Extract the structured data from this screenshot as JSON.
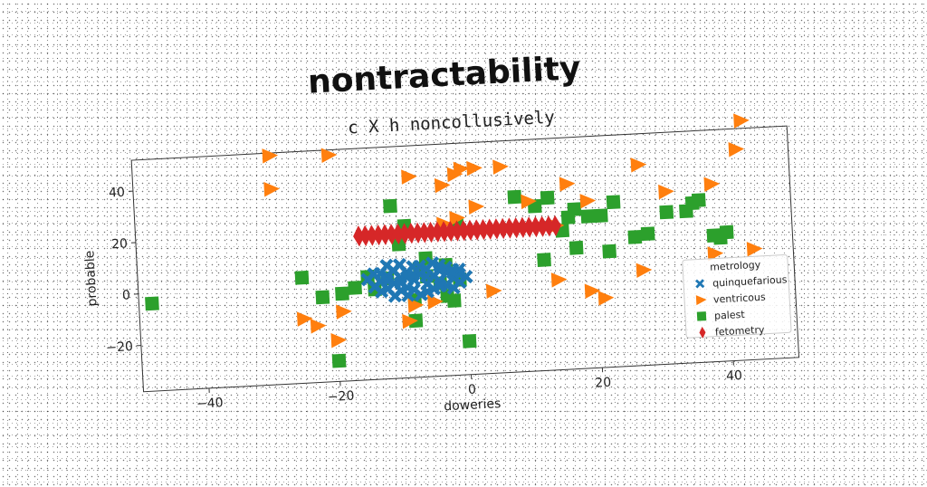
{
  "chart_data": {
    "type": "scatter",
    "title": "nontractability",
    "subtitle": "c X h noncollusively",
    "xlabel": "doweries",
    "ylabel": "probable",
    "xlim": [
      -50,
      50
    ],
    "ylim": [
      -38,
      52
    ],
    "xticks": [
      -40,
      -20,
      0,
      20,
      40
    ],
    "yticks": [
      -20,
      0,
      20,
      40
    ],
    "grid": false,
    "legend": {
      "title": "metrology",
      "placement": "lower-right"
    },
    "series": [
      {
        "name": "quinquefarious",
        "marker": "X",
        "color": "#1f77b4",
        "points": [
          [
            -14,
            -2
          ],
          [
            -13,
            0
          ],
          [
            -12,
            2
          ],
          [
            -11,
            -1
          ],
          [
            -10,
            1
          ],
          [
            -9,
            -3
          ],
          [
            -8,
            0
          ],
          [
            -7,
            2
          ],
          [
            -6,
            -2
          ],
          [
            -5,
            1
          ],
          [
            -4,
            -1
          ],
          [
            -3,
            2
          ],
          [
            -2,
            0
          ],
          [
            -1,
            -2
          ],
          [
            -13,
            3
          ],
          [
            -12,
            -3
          ],
          [
            -11,
            4
          ],
          [
            -10,
            -4
          ],
          [
            -9,
            3
          ],
          [
            -8,
            -4
          ],
          [
            -7,
            5
          ],
          [
            -6,
            4
          ],
          [
            -5,
            -4
          ],
          [
            -4,
            3
          ],
          [
            -3,
            -3
          ],
          [
            -2,
            3
          ],
          [
            -1,
            1
          ],
          [
            0,
            0
          ],
          [
            -15,
            1
          ],
          [
            -14,
            3
          ],
          [
            -12,
            6
          ],
          [
            -10,
            6
          ],
          [
            -8,
            5
          ],
          [
            -6,
            -5
          ],
          [
            -4,
            5
          ],
          [
            -2,
            -4
          ],
          [
            -11,
            -6
          ],
          [
            -9,
            -6
          ],
          [
            -7,
            -6
          ],
          [
            -5,
            6
          ],
          [
            -3,
            4
          ],
          [
            -1,
            3
          ],
          [
            -13,
            -4
          ],
          [
            -8,
            2
          ],
          [
            -6,
            1
          ],
          [
            -10,
            -1
          ],
          [
            -12,
            0
          ],
          [
            -4,
            -3
          ],
          [
            -2,
            2
          ],
          [
            -9,
            1
          ]
        ]
      },
      {
        "name": "ventricous",
        "marker": "triangle-right",
        "color": "#ff7f0e",
        "points": [
          [
            -29,
            51
          ],
          [
            -20,
            50
          ],
          [
            -29,
            38
          ],
          [
            -8,
            40
          ],
          [
            -3,
            36
          ],
          [
            -1,
            40
          ],
          [
            0,
            42
          ],
          [
            2,
            42
          ],
          [
            6,
            42
          ],
          [
            16,
            34
          ],
          [
            27,
            40
          ],
          [
            31,
            29
          ],
          [
            38,
            31
          ],
          [
            42,
            44
          ],
          [
            43,
            55
          ],
          [
            -19,
            -11
          ],
          [
            -23,
            -16
          ],
          [
            -25,
            -13
          ],
          [
            -20,
            -22
          ],
          [
            -9,
            -16
          ],
          [
            -5,
            -9
          ],
          [
            -1,
            23
          ],
          [
            -3,
            21
          ],
          [
            2,
            27
          ],
          [
            10,
            28
          ],
          [
            19,
            27
          ],
          [
            4,
            -6
          ],
          [
            14,
            -3
          ],
          [
            19,
            -8
          ],
          [
            21,
            -11
          ],
          [
            27,
            -1
          ],
          [
            38,
            4
          ],
          [
            44,
            5
          ],
          [
            14,
            18
          ],
          [
            -8,
            -10
          ]
        ]
      },
      {
        "name": "palest",
        "marker": "square",
        "color": "#2ca02c",
        "points": [
          [
            -48,
            -4
          ],
          [
            -25,
            3
          ],
          [
            -22,
            -5
          ],
          [
            -19,
            -4
          ],
          [
            -17,
            -2
          ],
          [
            -14,
            -3
          ],
          [
            -15,
            2
          ],
          [
            -10,
            14
          ],
          [
            -11,
            29
          ],
          [
            -9,
            21
          ],
          [
            -8,
            -8
          ],
          [
            -6,
            1
          ],
          [
            -6,
            8
          ],
          [
            -3,
            -7
          ],
          [
            -2,
            -9
          ],
          [
            -1,
            -1
          ],
          [
            -1,
            20
          ],
          [
            0,
            -25
          ],
          [
            8,
            30
          ],
          [
            11,
            26
          ],
          [
            13,
            29
          ],
          [
            12,
            5
          ],
          [
            16,
            21
          ],
          [
            17,
            24
          ],
          [
            19,
            21
          ],
          [
            21,
            21
          ],
          [
            23,
            26
          ],
          [
            26,
            12
          ],
          [
            28,
            13
          ],
          [
            31,
            21
          ],
          [
            34,
            21
          ],
          [
            35,
            24
          ],
          [
            36,
            25
          ],
          [
            38,
            11
          ],
          [
            39,
            10
          ],
          [
            40,
            12
          ],
          [
            -20,
            -30
          ],
          [
            -8,
            -16
          ],
          [
            -12,
            1
          ],
          [
            -7,
            4
          ],
          [
            -4,
            -2
          ],
          [
            -3,
            5
          ],
          [
            15,
            16
          ],
          [
            17,
            9
          ],
          [
            22,
            7
          ]
        ]
      },
      {
        "name": "fetometry",
        "marker": "thin-diamond",
        "color": "#d62728",
        "points": [
          [
            -16,
            18
          ],
          [
            -15,
            18
          ],
          [
            -14,
            18
          ],
          [
            -13,
            18
          ],
          [
            -12,
            18
          ],
          [
            -11,
            18
          ],
          [
            -10,
            18
          ],
          [
            -9,
            18
          ],
          [
            -8,
            18
          ],
          [
            -7,
            18
          ],
          [
            -6,
            18
          ],
          [
            -5,
            18
          ],
          [
            -4,
            18
          ],
          [
            -3,
            18
          ],
          [
            -2,
            18
          ],
          [
            -1,
            18
          ],
          [
            0,
            18
          ],
          [
            1,
            18
          ],
          [
            2,
            18
          ],
          [
            3,
            18
          ],
          [
            4,
            18
          ],
          [
            5,
            18
          ],
          [
            6,
            18
          ],
          [
            7,
            18
          ],
          [
            8,
            18
          ],
          [
            9,
            18
          ],
          [
            10,
            18
          ],
          [
            11,
            18
          ],
          [
            12,
            18
          ],
          [
            13,
            18
          ],
          [
            14,
            18
          ]
        ]
      }
    ]
  }
}
